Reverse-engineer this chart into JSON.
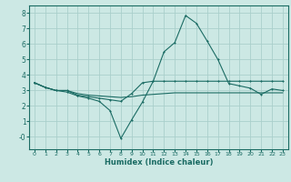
{
  "xlabel": "Humidex (Indice chaleur)",
  "bg_color": "#cce8e4",
  "grid_color": "#aacfcb",
  "line_color": "#1a6b63",
  "x_ticks": [
    0,
    1,
    2,
    3,
    4,
    5,
    6,
    7,
    8,
    9,
    10,
    11,
    12,
    13,
    14,
    15,
    16,
    17,
    18,
    19,
    20,
    21,
    22,
    23
  ],
  "y_ticks": [
    0,
    1,
    2,
    3,
    4,
    5,
    6,
    7,
    8
  ],
  "ylim": [
    -0.8,
    8.5
  ],
  "xlim": [
    -0.5,
    23.5
  ],
  "series1_x": [
    0,
    1,
    2,
    3,
    4,
    5,
    6,
    7,
    8,
    9,
    10,
    11,
    12,
    13,
    14,
    15,
    16,
    17,
    18,
    19,
    20,
    21,
    22,
    23
  ],
  "series1_y": [
    3.5,
    3.2,
    3.0,
    3.0,
    2.7,
    2.6,
    2.5,
    2.4,
    2.3,
    2.8,
    3.5,
    3.6,
    3.6,
    3.6,
    3.6,
    3.6,
    3.6,
    3.6,
    3.6,
    3.6,
    3.6,
    3.6,
    3.6,
    3.6
  ],
  "series2_x": [
    0,
    1,
    2,
    3,
    4,
    5,
    6,
    7,
    8,
    9,
    10,
    11,
    12,
    13,
    14,
    15,
    16,
    17,
    18,
    19,
    20,
    21,
    22,
    23
  ],
  "series2_y": [
    3.5,
    3.2,
    3.0,
    3.0,
    2.8,
    2.7,
    2.65,
    2.6,
    2.55,
    2.6,
    2.7,
    2.75,
    2.8,
    2.85,
    2.85,
    2.85,
    2.85,
    2.85,
    2.85,
    2.85,
    2.85,
    2.85,
    2.85,
    2.85
  ],
  "series3_x": [
    0,
    1,
    2,
    3,
    4,
    5,
    6,
    7,
    8,
    9,
    10,
    11,
    12,
    13,
    14,
    15,
    16,
    17,
    18,
    19,
    20,
    21,
    22,
    23
  ],
  "series3_y": [
    3.5,
    3.2,
    3.0,
    2.9,
    2.65,
    2.5,
    2.3,
    1.7,
    -0.1,
    1.1,
    2.25,
    3.6,
    5.5,
    6.1,
    7.85,
    7.35,
    6.2,
    5.0,
    3.45,
    3.3,
    3.15,
    2.75,
    3.1,
    3.0
  ]
}
